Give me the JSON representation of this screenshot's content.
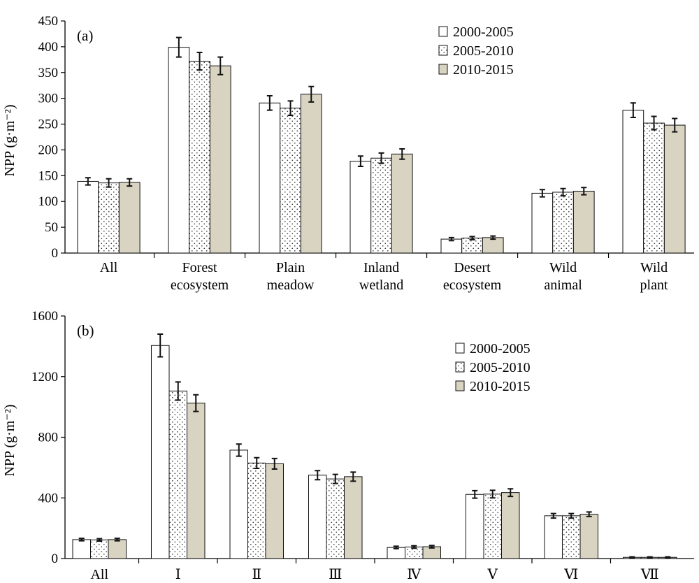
{
  "legend": [
    "2000-2005",
    "2005-2010",
    "2010-2015"
  ],
  "chart_data": [
    {
      "type": "bar",
      "panel_label": "(a)",
      "ylabel": "NPP (g·m⁻²)",
      "ylim": [
        0,
        450
      ],
      "yticks": [
        0,
        50,
        100,
        150,
        200,
        250,
        300,
        350,
        400,
        450
      ],
      "categories": [
        [
          "All"
        ],
        [
          "Forest",
          "ecosystem"
        ],
        [
          "Plain",
          "meadow"
        ],
        [
          "Inland",
          "wetland"
        ],
        [
          "Desert",
          "ecosystem"
        ],
        [
          "Wild",
          "animal"
        ],
        [
          "Wild",
          "plant"
        ]
      ],
      "series": [
        {
          "name": "2000-2005",
          "values": [
            139,
            399,
            291,
            178,
            27,
            116,
            277
          ],
          "errors": [
            7,
            19,
            14,
            10,
            3,
            7,
            14
          ]
        },
        {
          "name": "2005-2010",
          "values": [
            136,
            372,
            281,
            184,
            29,
            118,
            252
          ],
          "errors": [
            8,
            17,
            14,
            10,
            3,
            7,
            13
          ]
        },
        {
          "name": "2010-2015",
          "values": [
            137,
            363,
            308,
            192,
            30,
            120,
            248
          ],
          "errors": [
            7,
            17,
            15,
            10,
            3,
            7,
            13
          ]
        }
      ],
      "legend_position": "top-right"
    },
    {
      "type": "bar",
      "panel_label": "(b)",
      "ylabel": "NPP (g·m⁻²)",
      "ylim": [
        0,
        1600
      ],
      "yticks": [
        0,
        400,
        800,
        1200,
        1600
      ],
      "categories": [
        [
          "All"
        ],
        [
          "Ⅰ"
        ],
        [
          "Ⅱ"
        ],
        [
          "Ⅲ"
        ],
        [
          "Ⅳ"
        ],
        [
          "Ⅴ"
        ],
        [
          "Ⅵ"
        ],
        [
          "Ⅶ"
        ]
      ],
      "series": [
        {
          "name": "2000-2005",
          "values": [
            125,
            1405,
            715,
            550,
            73,
            423,
            282,
            8
          ],
          "errors": [
            8,
            75,
            40,
            30,
            8,
            25,
            15,
            3
          ]
        },
        {
          "name": "2005-2010",
          "values": [
            123,
            1105,
            630,
            525,
            76,
            425,
            282,
            8
          ],
          "errors": [
            8,
            60,
            35,
            30,
            8,
            25,
            15,
            3
          ]
        },
        {
          "name": "2010-2015",
          "values": [
            125,
            1025,
            625,
            540,
            78,
            435,
            292,
            8
          ],
          "errors": [
            8,
            55,
            35,
            30,
            8,
            25,
            15,
            3
          ]
        }
      ],
      "legend_position": "top-right"
    }
  ]
}
